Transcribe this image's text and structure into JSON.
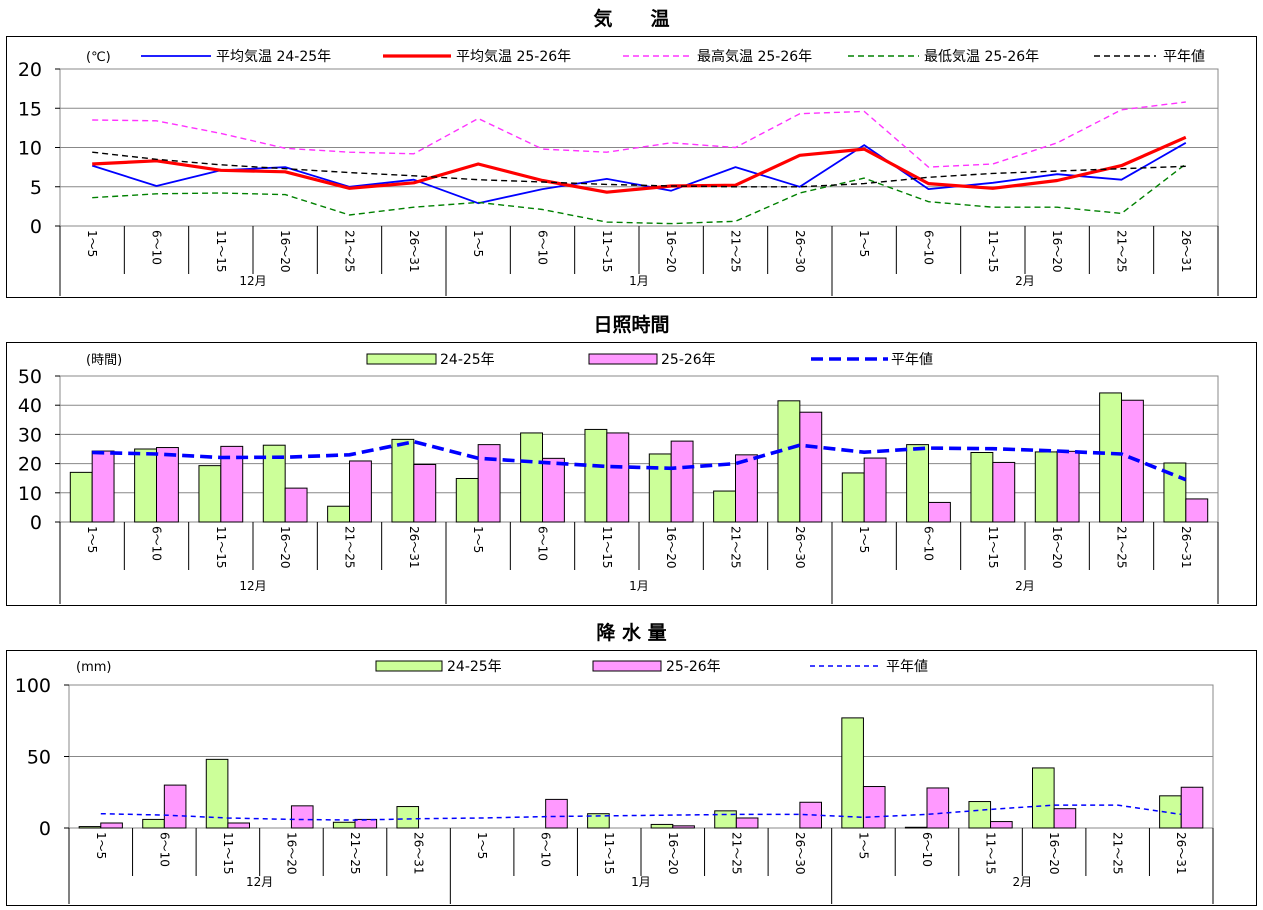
{
  "periods": [
    "1～5",
    "6～10",
    "11～15",
    "16～20",
    "21～25",
    "26～31",
    "1～5",
    "6～10",
    "11～15",
    "16～20",
    "21～25",
    "26～30",
    "1～5",
    "6～10",
    "11～15",
    "16～20",
    "21～25",
    "26～31"
  ],
  "months": [
    "12月",
    "1月",
    "2月"
  ],
  "chart_data": [
    {
      "type": "line",
      "title": "気　　温",
      "ylabel": "(℃)",
      "ylim": [
        0,
        20
      ],
      "yticks": [
        0,
        5,
        10,
        15,
        20
      ],
      "grid": true,
      "legend_position": "top",
      "series": [
        {
          "name": "平均気温 24-25年",
          "color": "#0000ff",
          "style": "solid",
          "values": [
            7.7,
            5.1,
            7.1,
            7.5,
            5.0,
            5.9,
            2.9,
            4.7,
            6.0,
            4.5,
            7.5,
            5.0,
            10.3,
            4.7,
            5.5,
            6.6,
            5.9,
            10.6
          ]
        },
        {
          "name": "平均気温 25-26年",
          "color": "#ff0000",
          "style": "solid-thick",
          "values": [
            7.9,
            8.3,
            7.1,
            6.9,
            4.8,
            5.5,
            7.9,
            5.8,
            4.3,
            5.1,
            5.2,
            9.0,
            9.8,
            5.4,
            4.8,
            5.8,
            7.7,
            11.3
          ]
        },
        {
          "name": "最高気温 25-26年",
          "color": "#ff33ff",
          "style": "dashed",
          "values": [
            13.5,
            13.4,
            11.8,
            9.9,
            9.4,
            9.2,
            13.7,
            9.8,
            9.4,
            10.6,
            10.0,
            14.3,
            14.6,
            7.5,
            7.9,
            10.6,
            14.8,
            15.8
          ]
        },
        {
          "name": "最低気温 25-26年",
          "color": "#008000",
          "style": "dashed",
          "values": [
            3.6,
            4.1,
            4.2,
            4.0,
            1.4,
            2.4,
            3.0,
            2.1,
            0.5,
            0.3,
            0.6,
            4.2,
            6.1,
            3.1,
            2.4,
            2.4,
            1.6,
            7.9
          ]
        },
        {
          "name": "平年値",
          "color": "#000000",
          "style": "dashed",
          "values": [
            9.4,
            8.5,
            7.8,
            7.3,
            6.8,
            6.4,
            5.9,
            5.6,
            5.3,
            5.1,
            5.0,
            5.0,
            5.4,
            6.2,
            6.7,
            7.0,
            7.3,
            7.6
          ]
        }
      ]
    },
    {
      "type": "bar",
      "title": "日照時間",
      "ylabel": "(時間)",
      "ylim": [
        0,
        50
      ],
      "yticks": [
        0,
        10,
        20,
        30,
        40,
        50
      ],
      "grid": true,
      "legend_position": "top",
      "series": [
        {
          "name": "24-25年",
          "color": "#ccff99",
          "kind": "bar",
          "values": [
            17.0,
            25.0,
            19.3,
            26.3,
            5.4,
            28.3,
            14.9,
            30.5,
            31.7,
            23.3,
            10.6,
            41.5,
            16.8,
            26.5,
            23.8,
            24.0,
            44.2,
            20.2
          ]
        },
        {
          "name": "25-26年",
          "color": "#ff99ff",
          "kind": "bar",
          "values": [
            24.3,
            25.5,
            25.9,
            11.6,
            20.9,
            19.7,
            26.5,
            21.8,
            30.5,
            27.7,
            23.0,
            37.6,
            21.9,
            6.7,
            20.4,
            24.2,
            41.7,
            7.9
          ]
        },
        {
          "name": "平年値",
          "color": "#0000ff",
          "kind": "line-dashed-thick",
          "values": [
            23.8,
            23.3,
            22.1,
            22.2,
            23.0,
            27.5,
            21.8,
            20.4,
            19.0,
            18.4,
            20.0,
            26.3,
            23.9,
            25.3,
            25.1,
            24.3,
            23.3,
            14.5
          ]
        }
      ]
    },
    {
      "type": "bar",
      "title": "降 水 量",
      "ylabel": "(mm)",
      "ylim": [
        0,
        100
      ],
      "yticks": [
        0,
        50,
        100
      ],
      "grid": true,
      "legend_position": "top",
      "series": [
        {
          "name": "24-25年",
          "color": "#ccff99",
          "kind": "bar",
          "values": [
            1.0,
            6.0,
            48.0,
            0,
            4.0,
            15.0,
            0,
            0,
            10.0,
            2.5,
            12.0,
            0,
            77.0,
            0.5,
            18.5,
            42.0,
            0,
            22.5
          ]
        },
        {
          "name": "25-26年",
          "color": "#ff99ff",
          "kind": "bar",
          "values": [
            3.5,
            30.0,
            3.5,
            15.5,
            6.0,
            0,
            0,
            20.0,
            0,
            1.5,
            7.0,
            18.0,
            29.0,
            28.0,
            4.5,
            13.5,
            0,
            28.5
          ]
        },
        {
          "name": "平年値",
          "color": "#0000ff",
          "kind": "line-dashed",
          "values": [
            10.0,
            9.0,
            7.0,
            6.0,
            5.5,
            6.5,
            7.0,
            8.0,
            8.5,
            9.0,
            9.5,
            9.5,
            7.5,
            9.5,
            13.0,
            16.0,
            16.0,
            9.5
          ]
        }
      ]
    }
  ]
}
